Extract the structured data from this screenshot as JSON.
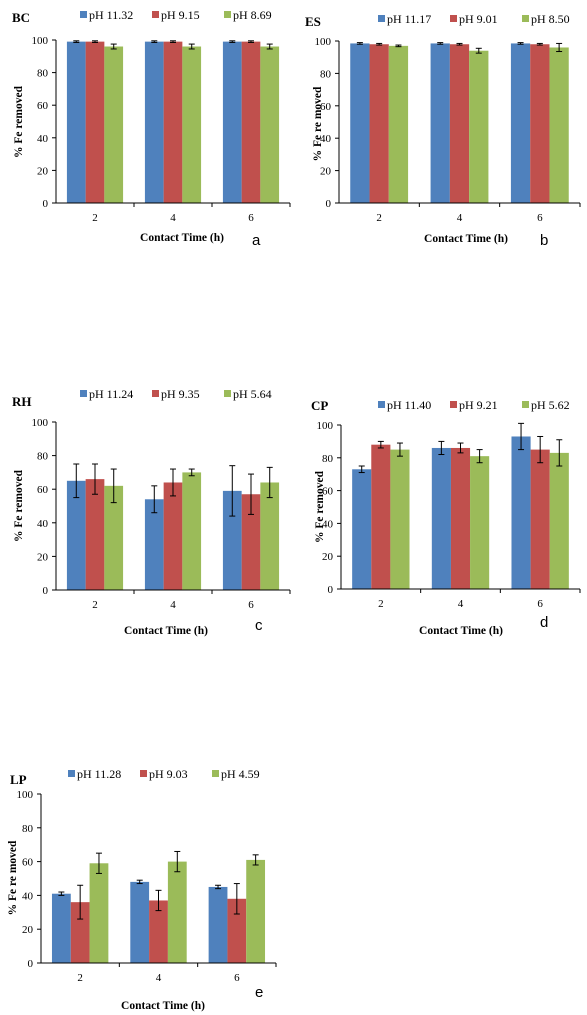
{
  "colors": {
    "series1": "#4f81bd",
    "series2": "#c0504d",
    "series3": "#9bbb59"
  },
  "chart_data": [
    {
      "type": "bar",
      "title": "BC",
      "panel_letter": "a",
      "xlabel": "Contact Time (h)",
      "ylabel": "% Fe removed",
      "categories": [
        "2",
        "4",
        "6"
      ],
      "ylim": [
        0,
        100
      ],
      "yticks": [
        "0",
        "20",
        "40",
        "60",
        "80",
        "100"
      ],
      "legend_position": "top",
      "series": [
        {
          "name": "pH 11.32",
          "values": [
            99,
            99,
            99
          ],
          "errors": [
            0.5,
            0.5,
            0.5
          ]
        },
        {
          "name": "pH 9.15",
          "values": [
            99,
            99,
            99
          ],
          "errors": [
            0.5,
            0.5,
            0.5
          ]
        },
        {
          "name": "pH 8.69",
          "values": [
            96,
            96,
            96
          ],
          "errors": [
            1.5,
            1.5,
            1.5
          ]
        }
      ]
    },
    {
      "type": "bar",
      "title": "ES",
      "panel_letter": "b",
      "xlabel": "Contact Time (h)",
      "ylabel": "% Fe re moved",
      "categories": [
        "2",
        "4",
        "6"
      ],
      "ylim": [
        0,
        100
      ],
      "yticks": [
        "0",
        "20",
        "40",
        "60",
        "80",
        "100"
      ],
      "legend_position": "top",
      "series": [
        {
          "name": "pH 11.17",
          "values": [
            98.5,
            98.5,
            98.5
          ],
          "errors": [
            0.5,
            0.5,
            0.5
          ]
        },
        {
          "name": "pH 9.01",
          "values": [
            98,
            98,
            98
          ],
          "errors": [
            0.5,
            0.5,
            0.5
          ]
        },
        {
          "name": "pH 8.50",
          "values": [
            97,
            94,
            96
          ],
          "errors": [
            0.5,
            1.5,
            2.5
          ]
        }
      ]
    },
    {
      "type": "bar",
      "title": "RH",
      "panel_letter": "c",
      "xlabel": "Contact Time (h)",
      "ylabel": "% Fe removed",
      "categories": [
        "2",
        "4",
        "6"
      ],
      "ylim": [
        0,
        100
      ],
      "yticks": [
        "0",
        "20",
        "40",
        "60",
        "80",
        "100"
      ],
      "legend_position": "top",
      "series": [
        {
          "name": "pH 11.24",
          "values": [
            65,
            54,
            59
          ],
          "errors": [
            10,
            8,
            15
          ]
        },
        {
          "name": "pH 9.35",
          "values": [
            66,
            64,
            57
          ],
          "errors": [
            9,
            8,
            12
          ]
        },
        {
          "name": "pH 5.64",
          "values": [
            62,
            70,
            64
          ],
          "errors": [
            10,
            2,
            9
          ]
        }
      ]
    },
    {
      "type": "bar",
      "title": "CP",
      "panel_letter": "d",
      "xlabel": "Contact Time (h)",
      "ylabel": "% Fe removed",
      "categories": [
        "2",
        "4",
        "6"
      ],
      "ylim": [
        0,
        100
      ],
      "yticks": [
        "0",
        "20",
        "40",
        "60",
        "80",
        "100"
      ],
      "legend_position": "top",
      "series": [
        {
          "name": "pH 11.40",
          "values": [
            73,
            86,
            93
          ],
          "errors": [
            2,
            4,
            8
          ]
        },
        {
          "name": "pH 9.21",
          "values": [
            88,
            86,
            85
          ],
          "errors": [
            2,
            3,
            8
          ]
        },
        {
          "name": "pH 5.62",
          "values": [
            85,
            81,
            83
          ],
          "errors": [
            4,
            4,
            8
          ]
        }
      ]
    },
    {
      "type": "bar",
      "title": "LP",
      "panel_letter": "e",
      "xlabel": "Contact Time (h)",
      "ylabel": "% Fe re moved",
      "categories": [
        "2",
        "4",
        "6"
      ],
      "ylim": [
        0,
        100
      ],
      "yticks": [
        "0",
        "20",
        "40",
        "60",
        "80",
        "100"
      ],
      "legend_position": "top",
      "series": [
        {
          "name": "pH 11.28",
          "values": [
            41,
            48,
            45
          ],
          "errors": [
            1,
            1,
            1
          ]
        },
        {
          "name": "pH 9.03",
          "values": [
            36,
            37,
            38
          ],
          "errors": [
            10,
            6,
            9
          ]
        },
        {
          "name": "pH 4.59",
          "values": [
            59,
            60,
            61
          ],
          "errors": [
            6,
            6,
            3
          ]
        }
      ]
    }
  ]
}
